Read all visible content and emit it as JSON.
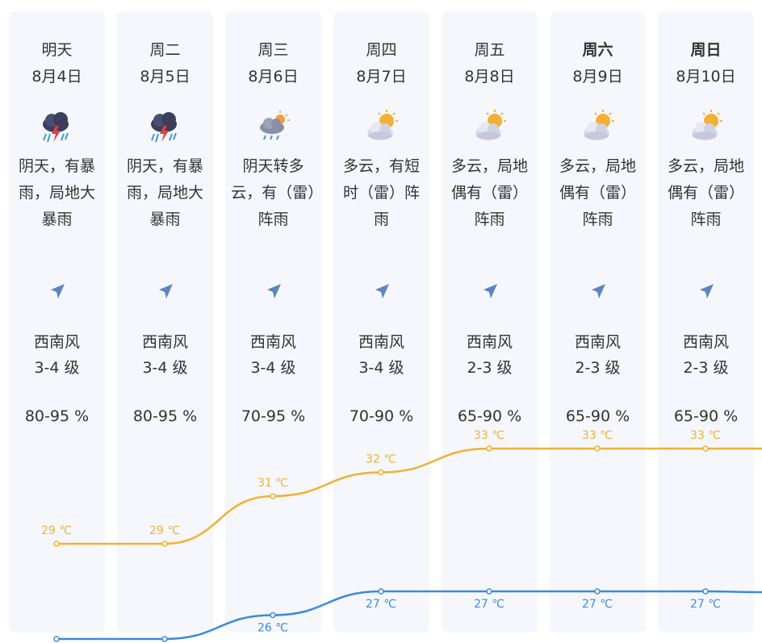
{
  "days": [
    {
      "weekday": "明天",
      "date": "8月4日",
      "icon": "thunderstorm-icon",
      "desc": "阴天，有暴雨，局地大暴雨",
      "wind_dir": "西南风",
      "wind_level": "3-4 级",
      "humidity": "80-95 %",
      "high": "29 ℃",
      "low": "25 ℃",
      "bold": false
    },
    {
      "weekday": "周二",
      "date": "8月5日",
      "icon": "thunderstorm-icon",
      "desc": "阴天，有暴雨，局地大暴雨",
      "wind_dir": "西南风",
      "wind_level": "3-4 级",
      "humidity": "80-95 %",
      "high": "29 ℃",
      "low": "25 ℃",
      "bold": false
    },
    {
      "weekday": "周三",
      "date": "8月6日",
      "icon": "cloudy-shower-icon",
      "desc": "阴天转多云，有（雷）阵雨",
      "wind_dir": "西南风",
      "wind_level": "3-4 级",
      "humidity": "70-95 %",
      "high": "31 ℃",
      "low": "26 ℃",
      "bold": false
    },
    {
      "weekday": "周四",
      "date": "8月7日",
      "icon": "partly-cloudy-icon",
      "desc": "多云，有短时（雷）阵雨",
      "wind_dir": "西南风",
      "wind_level": "3-4 级",
      "humidity": "70-90 %",
      "high": "32 ℃",
      "low": "27 ℃",
      "bold": false
    },
    {
      "weekday": "周五",
      "date": "8月8日",
      "icon": "partly-cloudy-icon",
      "desc": "多云，局地偶有（雷）阵雨",
      "wind_dir": "西南风",
      "wind_level": "2-3 级",
      "humidity": "65-90 %",
      "high": "33 ℃",
      "low": "27 ℃",
      "bold": false
    },
    {
      "weekday": "周六",
      "date": "8月9日",
      "icon": "partly-cloudy-icon",
      "desc": "多云，局地偶有（雷）阵雨",
      "wind_dir": "西南风",
      "wind_level": "2-3 级",
      "humidity": "65-90 %",
      "high": "33 ℃",
      "low": "27 ℃",
      "bold": true
    },
    {
      "weekday": "周日",
      "date": "8月10日",
      "icon": "partly-cloudy-icon",
      "desc": "多云，局地偶有（雷）阵雨",
      "wind_dir": "西南风",
      "wind_level": "2-3 级",
      "humidity": "65-90 %",
      "high": "33 ℃",
      "low": "27 ℃",
      "bold": true
    }
  ],
  "chart_data": {
    "type": "line",
    "x": [
      "明天",
      "周二",
      "周三",
      "周四",
      "周五",
      "周六",
      "周日"
    ],
    "series": [
      {
        "values": [
          29,
          29,
          31,
          32,
          33,
          33,
          33
        ]
      },
      {
        "values": [
          25,
          25,
          26,
          27,
          27,
          27,
          27
        ]
      }
    ],
    "ylim": [
      20,
      38
    ],
    "colors": {
      "high": "#f2b134",
      "low": "#3a8be0"
    }
  },
  "colors": {
    "card_bg": "#f6f7fc",
    "text": "#333333",
    "wind_arrow": "#5b87bf"
  }
}
